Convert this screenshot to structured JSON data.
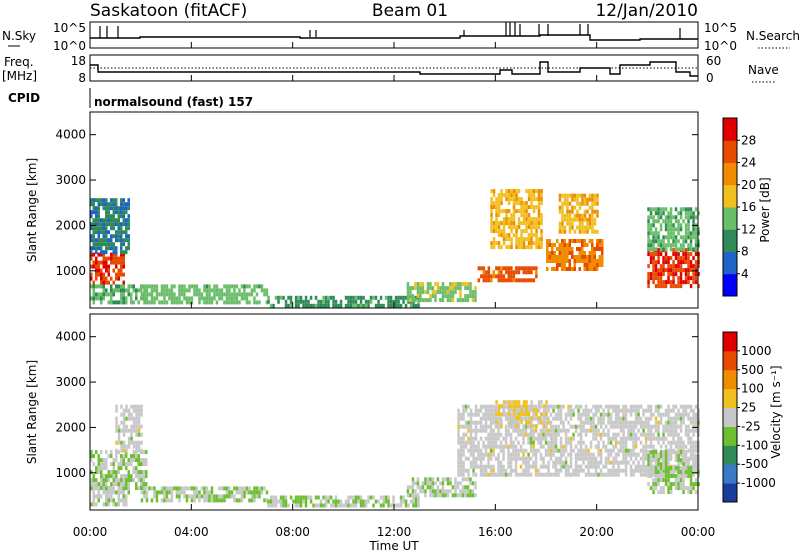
{
  "header": {
    "station": "Saskatoon (fitACF)",
    "beam": "Beam 01",
    "date": "12/Jan/2010"
  },
  "top_panel": {
    "left_label": "N.Sky",
    "left_ticks": [
      "10^5",
      "10^0"
    ],
    "right_ticks": [
      "10^5",
      "10^0"
    ],
    "right_label": "N.Search"
  },
  "freq_panel": {
    "left_label_1": "Freq.",
    "left_label_2": "[MHz]",
    "left_ticks": [
      "18",
      "8"
    ],
    "right_ticks": [
      "60",
      "0"
    ],
    "right_label": "Nave"
  },
  "cpid_panel": {
    "label": "CPID",
    "text": "normalsound (fast) 157"
  },
  "power_panel": {
    "ylabel": "Slant Range [km]",
    "yticks": [
      "4000",
      "3000",
      "2000",
      "1000"
    ],
    "colorbar_label": "Power [dB]",
    "colorbar_ticks": [
      "28",
      "24",
      "20",
      "16",
      "12",
      "8",
      "4"
    ],
    "colors": [
      "#0000ff",
      "#1e64c8",
      "#2e8b57",
      "#6abe6a",
      "#f0c020",
      "#f08c00",
      "#e84a00",
      "#e00000"
    ]
  },
  "velocity_panel": {
    "ylabel": "Slant Range [km]",
    "yticks": [
      "4000",
      "3000",
      "2000",
      "1000"
    ],
    "colorbar_label": "Velocity [m s⁻¹]",
    "colorbar_ticks": [
      "1000",
      "500",
      "100",
      "25",
      "-25",
      "-100",
      "-500",
      "-1000"
    ],
    "colors": [
      "#1c3c9c",
      "#3c78c8",
      "#2e8b57",
      "#6cc030",
      "#c8c8c8",
      "#f0c020",
      "#f08c00",
      "#e84a00",
      "#e00000"
    ]
  },
  "x_axis": {
    "label": "Time UT",
    "ticks": [
      "00:00",
      "04:00",
      "08:00",
      "12:00",
      "16:00",
      "20:00",
      "00:00"
    ]
  },
  "chart_data": {
    "type": "heatmap",
    "title": "Saskatoon (fitACF)",
    "xlabel": "Time UT",
    "ylabel": "Slant Range [km]",
    "xlim": [
      "00:00",
      "24:00"
    ],
    "ylim": [
      180,
      4500
    ],
    "series": [
      {
        "name": "Power [dB]",
        "range": [
          0,
          30
        ],
        "regions": [
          {
            "t0": 0.0,
            "t1": 1.3,
            "r0": 700,
            "r1": 1400,
            "value": 26
          },
          {
            "t0": 0.0,
            "t1": 2.2,
            "r0": 300,
            "r1": 700,
            "value": 12
          },
          {
            "t0": 0.0,
            "t1": 1.5,
            "r0": 1400,
            "r1": 2600,
            "value": 8
          },
          {
            "t0": 2.0,
            "t1": 7.0,
            "r0": 300,
            "r1": 700,
            "value": 13
          },
          {
            "t0": 7.0,
            "t1": 13.0,
            "r0": 250,
            "r1": 450,
            "value": 10
          },
          {
            "t0": 12.5,
            "t1": 15.2,
            "r0": 350,
            "r1": 750,
            "value": 14
          },
          {
            "t0": 15.3,
            "t1": 17.6,
            "r0": 750,
            "r1": 1100,
            "value": 24
          },
          {
            "t0": 15.8,
            "t1": 17.8,
            "r0": 1500,
            "r1": 2800,
            "value": 18
          },
          {
            "t0": 18.0,
            "t1": 20.2,
            "r0": 1000,
            "r1": 1700,
            "value": 22
          },
          {
            "t0": 18.5,
            "t1": 20.0,
            "r0": 1900,
            "r1": 2700,
            "value": 18
          },
          {
            "t0": 22.0,
            "t1": 24.0,
            "r0": 700,
            "r1": 1500,
            "value": 26
          },
          {
            "t0": 22.0,
            "t1": 24.0,
            "r0": 1500,
            "r1": 2400,
            "value": 12
          }
        ]
      },
      {
        "name": "Velocity [m s⁻¹]",
        "range": [
          -1000,
          1000
        ],
        "regions": [
          {
            "t0": 0.0,
            "t1": 2.2,
            "r0": 700,
            "r1": 1500,
            "value": -100
          },
          {
            "t0": 0.0,
            "t1": 1.5,
            "r0": 300,
            "r1": 700,
            "value": -25
          },
          {
            "t0": 1.0,
            "t1": 2.0,
            "r0": 1500,
            "r1": 2500,
            "value": 0
          },
          {
            "t0": 2.0,
            "t1": 7.0,
            "r0": 350,
            "r1": 700,
            "value": -100
          },
          {
            "t0": 7.0,
            "t1": 13.0,
            "r0": 250,
            "r1": 500,
            "value": -100
          },
          {
            "t0": 12.5,
            "t1": 15.2,
            "r0": 500,
            "r1": 900,
            "value": -100
          },
          {
            "t0": 14.5,
            "t1": 24.0,
            "r0": 1000,
            "r1": 2500,
            "value": 0
          },
          {
            "t0": 16.0,
            "t1": 18.0,
            "r0": 2000,
            "r1": 2600,
            "value": 100
          },
          {
            "t0": 22.0,
            "t1": 24.0,
            "r0": 600,
            "r1": 1500,
            "value": -100
          }
        ]
      }
    ]
  }
}
